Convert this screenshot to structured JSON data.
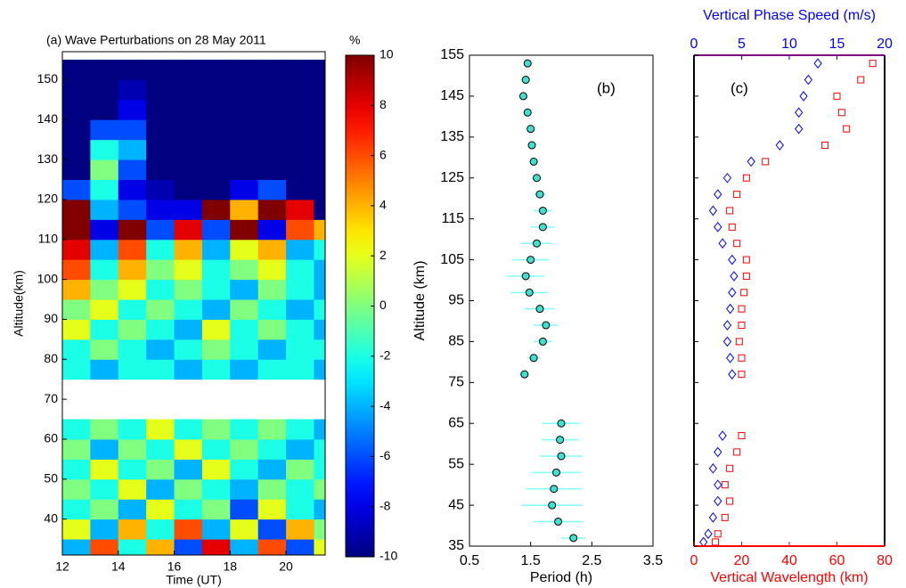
{
  "chart_data": [
    {
      "type": "heatmap",
      "title": "(a) Wave Perturbations on 28 May 2011",
      "colorbar_label": "%",
      "xlabel": "Time (UT)",
      "ylabel": "Altitude(km)",
      "colormap": "jet",
      "x": [
        12.5,
        13.5,
        14.5,
        15.5,
        16.5,
        17.5,
        18.5,
        19.5,
        20.5,
        21.5
      ],
      "y": [
        32.5,
        37.5,
        42.5,
        47.5,
        52.5,
        57.5,
        62.5,
        67.5,
        72.5,
        77.5,
        82.5,
        87.5,
        92.5,
        97.5,
        102.5,
        107.5,
        112.5,
        117.5,
        122.5,
        127.5,
        132.5,
        137.5,
        142.5,
        147.5,
        152.5
      ],
      "z": [
        [
          -4,
          6,
          -2,
          4,
          -6,
          8,
          -4,
          6,
          -6,
          2
        ],
        [
          2,
          -4,
          4,
          -2,
          6,
          -4,
          2,
          -6,
          4,
          0
        ],
        [
          -2,
          0,
          -4,
          2,
          -2,
          0,
          -6,
          2,
          -2,
          -4
        ],
        [
          0,
          -2,
          2,
          -4,
          0,
          -2,
          -4,
          0,
          -2,
          0
        ],
        [
          -2,
          2,
          -2,
          0,
          -4,
          2,
          -2,
          -4,
          0,
          -2
        ],
        [
          0,
          -4,
          0,
          -2,
          2,
          -2,
          0,
          -2,
          -4,
          -2
        ],
        [
          -2,
          0,
          -2,
          2,
          -2,
          0,
          -2,
          0,
          -2,
          -4
        ],
        [
          null,
          null,
          null,
          null,
          null,
          null,
          null,
          null,
          null,
          null
        ],
        [
          null,
          null,
          null,
          null,
          null,
          null,
          null,
          null,
          null,
          null
        ],
        [
          -2,
          -4,
          -2,
          -2,
          -4,
          -2,
          -4,
          -2,
          -2,
          -4
        ],
        [
          -2,
          0,
          -2,
          -4,
          -2,
          0,
          -2,
          -4,
          -2,
          -2
        ],
        [
          2,
          -2,
          0,
          -2,
          -4,
          2,
          -2,
          0,
          -2,
          -4
        ],
        [
          0,
          2,
          -2,
          0,
          -2,
          -4,
          0,
          -2,
          -4,
          -2
        ],
        [
          4,
          0,
          2,
          -2,
          0,
          -2,
          -4,
          0,
          -2,
          -4
        ],
        [
          6,
          -2,
          4,
          0,
          2,
          -2,
          0,
          2,
          -2,
          -4
        ],
        [
          8,
          -4,
          6,
          -2,
          4,
          -4,
          2,
          4,
          -4,
          -2
        ],
        [
          10,
          -8,
          10,
          -6,
          8,
          -6,
          10,
          -8,
          6,
          4
        ],
        [
          10,
          -4,
          -6,
          -8,
          -8,
          10,
          4,
          10,
          8,
          -10
        ],
        [
          -6,
          -2,
          -8,
          -9,
          -10,
          -10,
          -8,
          -6,
          -10,
          -10
        ],
        [
          -10,
          0,
          -6,
          -10,
          -10,
          -10,
          -10,
          -10,
          -10,
          -10
        ],
        [
          -10,
          -2,
          -4,
          -10,
          -10,
          -10,
          -10,
          -10,
          -10,
          -10
        ],
        [
          -10,
          -6,
          -6,
          -10,
          -10,
          -10,
          -10,
          -10,
          -10,
          -10
        ],
        [
          -10,
          -10,
          -8,
          -10,
          -10,
          -10,
          -10,
          -10,
          -10,
          -10
        ],
        [
          -10,
          -10,
          -9,
          -10,
          -10,
          -10,
          -10,
          -10,
          -10,
          -10
        ],
        [
          -10,
          -10,
          -10,
          -10,
          -10,
          -10,
          -10,
          -10,
          -10,
          -10
        ]
      ],
      "xlim": [
        12,
        21.4
      ],
      "xticks": [
        12,
        14,
        16,
        18,
        20
      ],
      "ylim": [
        31,
        157
      ],
      "yticks": [
        40,
        50,
        60,
        70,
        80,
        90,
        100,
        110,
        120,
        130,
        140,
        150
      ],
      "zlim": [
        -10,
        10
      ],
      "zticks": [
        -10,
        -8,
        -6,
        -4,
        -2,
        0,
        2,
        4,
        6,
        8,
        10
      ]
    },
    {
      "type": "errorbar",
      "annotation": "(b)",
      "xlabel": "Period (h)",
      "ylabel": "Altitude (km)",
      "y": [
        153,
        149,
        145,
        141,
        137,
        133,
        129,
        125,
        121,
        117,
        113,
        109,
        105,
        101,
        97,
        93,
        89,
        85,
        81,
        77,
        65,
        61,
        57,
        53,
        49,
        45,
        41,
        37
      ],
      "values": [
        1.45,
        1.42,
        1.38,
        1.45,
        1.5,
        1.52,
        1.55,
        1.6,
        1.65,
        1.7,
        1.7,
        1.6,
        1.5,
        1.42,
        1.48,
        1.65,
        1.75,
        1.7,
        1.55,
        1.4,
        2.0,
        1.98,
        2.0,
        1.92,
        1.88,
        1.85,
        1.95,
        2.2
      ],
      "errors": [
        0.05,
        0.05,
        0.05,
        0.05,
        0.06,
        0.06,
        0.07,
        0.08,
        0.1,
        0.15,
        0.2,
        0.25,
        0.3,
        0.3,
        0.3,
        0.25,
        0.2,
        0.15,
        0.1,
        0.08,
        0.3,
        0.3,
        0.35,
        0.4,
        0.45,
        0.5,
        0.4,
        0.2
      ],
      "color": "#40e0d0",
      "edge_color": "#000000",
      "error_color": "#7fffff",
      "xlim": [
        0.5,
        3.5
      ],
      "xticks": [
        0.5,
        1.5,
        2.5,
        3.5
      ],
      "ylim": [
        35,
        155
      ],
      "yticks": [
        35,
        45,
        55,
        65,
        75,
        85,
        95,
        105,
        115,
        125,
        135,
        145,
        155
      ]
    },
    {
      "type": "scatter",
      "annotation": "(c)",
      "xlabel": "Vertical Wavelength (km)",
      "x2label": "Vertical Phase Speed (m/s)",
      "y": [
        153,
        149,
        145,
        141,
        137,
        133,
        129,
        125,
        121,
        117,
        113,
        109,
        105,
        101,
        97,
        93,
        89,
        85,
        81,
        77,
        62,
        58,
        54,
        50,
        46,
        42,
        38,
        36
      ],
      "series": [
        {
          "color": "#ff0000",
          "marker": "square",
          "axis": "x",
          "values": [
            75,
            70,
            60,
            62,
            64,
            55,
            30,
            22,
            18,
            15,
            16,
            18,
            22,
            22,
            21,
            20,
            20,
            19,
            20,
            20,
            20,
            18,
            15,
            13,
            15,
            13,
            10,
            9
          ]
        },
        {
          "color": "#0000ff",
          "marker": "diamond",
          "axis": "x2",
          "values": [
            13,
            12,
            11.5,
            11,
            11,
            9,
            6,
            3.5,
            2.5,
            2,
            2.5,
            3,
            4,
            4.2,
            4,
            3.8,
            3.5,
            3.5,
            3.8,
            4,
            3,
            2.5,
            2,
            2.5,
            2.5,
            2,
            1.5,
            1
          ]
        }
      ],
      "xlim": [
        0,
        80
      ],
      "xticks": [
        0,
        20,
        40,
        60,
        80
      ],
      "x2lim": [
        0,
        20
      ],
      "x2ticks": [
        0,
        5,
        10,
        15,
        20
      ],
      "ylim": [
        35,
        155
      ],
      "yticks": [
        35,
        45,
        55,
        65,
        75,
        85,
        95,
        105,
        115,
        125,
        135,
        145,
        155
      ]
    }
  ]
}
